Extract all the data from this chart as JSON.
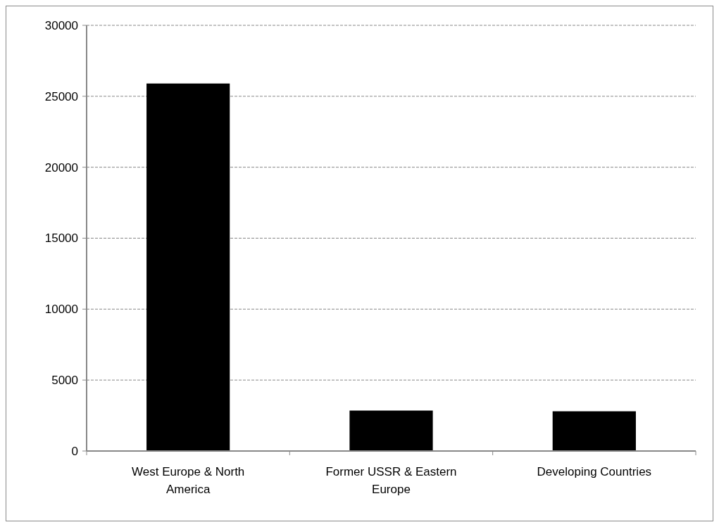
{
  "chart_data": {
    "type": "bar",
    "categories": [
      "West Europe & North America",
      "Former USSR & Eastern Europe",
      "Developing Countries"
    ],
    "values": [
      25900,
      2850,
      2800
    ],
    "color": "#000000",
    "ylim": [
      0,
      30000
    ],
    "yticks": [
      0,
      5000,
      10000,
      15000,
      20000,
      25000,
      30000
    ],
    "grid": "y"
  }
}
